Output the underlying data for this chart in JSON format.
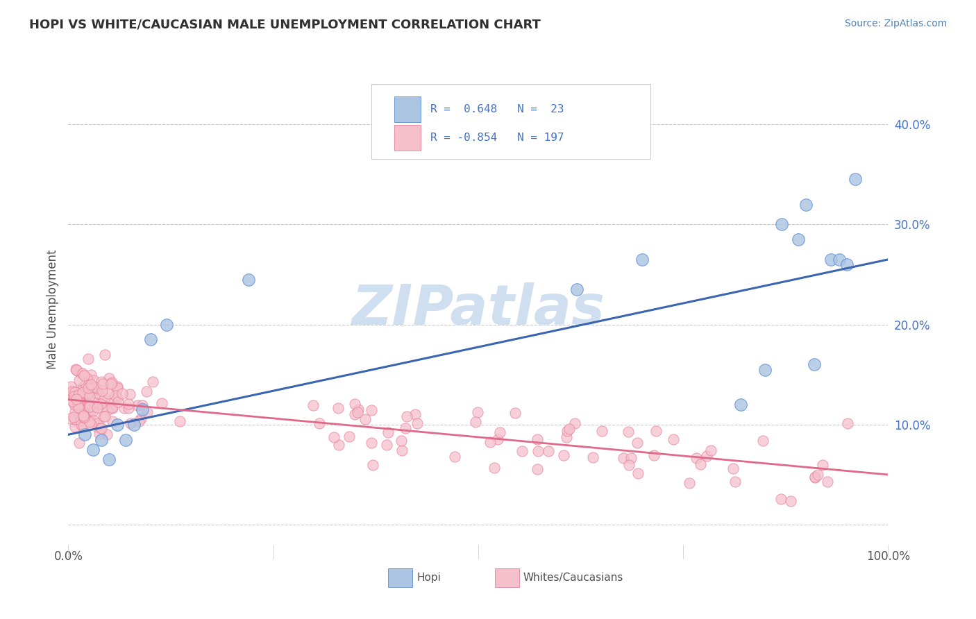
{
  "title": "HOPI VS WHITE/CAUCASIAN MALE UNEMPLOYMENT CORRELATION CHART",
  "source_text": "Source: ZipAtlas.com",
  "ylabel": "Male Unemployment",
  "hopi_R": 0.648,
  "hopi_N": 23,
  "white_R": -0.854,
  "white_N": 197,
  "hopi_color": "#aac4e2",
  "hopi_edge_color": "#5b8dd9",
  "hopi_line_color": "#3a65b0",
  "white_color": "#f5c0cc",
  "white_edge_color": "#e8809a",
  "white_line_color": "#e06888",
  "watermark_color": "#d0dff0",
  "background_color": "#ffffff",
  "grid_color": "#c8c8c8",
  "title_color": "#303030",
  "axis_label_color": "#505050",
  "tick_label_color": "#4472c4",
  "source_color": "#5080b0",
  "xlim": [
    0.0,
    1.0
  ],
  "ylim": [
    -0.02,
    0.45
  ],
  "ytick_vals": [
    0.0,
    0.1,
    0.2,
    0.3,
    0.4
  ],
  "ytick_labels": [
    "",
    "10.0%",
    "20.0%",
    "30.0%",
    "40.0%"
  ],
  "xtick_vals": [
    0.0,
    0.25,
    0.5,
    0.75,
    1.0
  ],
  "xtick_labels": [
    "0.0%",
    "",
    "",
    "",
    "100.0%"
  ],
  "hopi_x": [
    0.02,
    0.03,
    0.04,
    0.05,
    0.06,
    0.07,
    0.08,
    0.09,
    0.1,
    0.12,
    0.22,
    0.62,
    0.7,
    0.82,
    0.85,
    0.87,
    0.89,
    0.9,
    0.91,
    0.93,
    0.94,
    0.95,
    0.96
  ],
  "hopi_y": [
    0.09,
    0.075,
    0.085,
    0.065,
    0.1,
    0.085,
    0.1,
    0.115,
    0.185,
    0.2,
    0.245,
    0.235,
    0.265,
    0.12,
    0.155,
    0.3,
    0.285,
    0.32,
    0.16,
    0.265,
    0.265,
    0.26,
    0.345
  ],
  "hopi_trend_x0": 0.0,
  "hopi_trend_y0": 0.09,
  "hopi_trend_x1": 1.0,
  "hopi_trend_y1": 0.265,
  "white_trend_x0": 0.0,
  "white_trend_y0": 0.125,
  "white_trend_x1": 1.0,
  "white_trend_y1": 0.05
}
